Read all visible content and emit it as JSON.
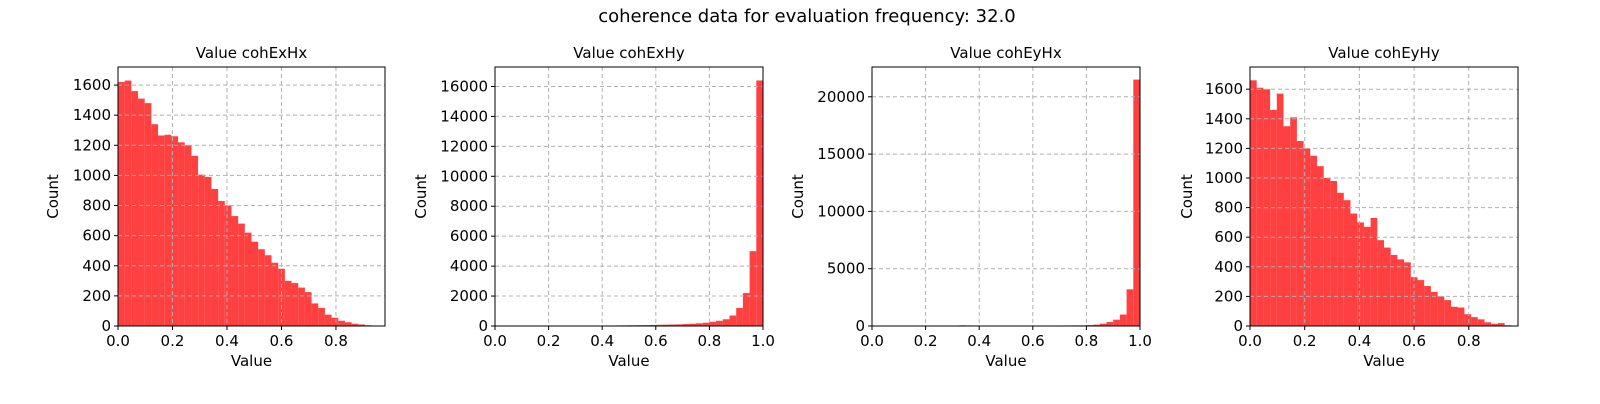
{
  "suptitle": "coherence data for evaluation frequency: 32.0",
  "bar_color": "#ff0000",
  "bar_opacity": 0.75,
  "grid_color": "#b0b0b0",
  "chart_data": [
    {
      "type": "bar",
      "title": "Value cohExHx",
      "xlabel": "Value",
      "ylabel": "Count",
      "xlim": [
        0.0,
        0.98
      ],
      "ylim": [
        0,
        1720
      ],
      "xticks": [
        0.0,
        0.2,
        0.4,
        0.6,
        0.8
      ],
      "xtick_labels": [
        "0.0",
        "0.2",
        "0.4",
        "0.6",
        "0.8"
      ],
      "yticks": [
        0,
        200,
        400,
        600,
        800,
        1000,
        1200,
        1400,
        1600
      ],
      "ytick_labels": [
        "0",
        "200",
        "400",
        "600",
        "800",
        "1000",
        "1200",
        "1400",
        "1600"
      ],
      "bin_width": 0.0245,
      "values": [
        1620,
        1630,
        1560,
        1510,
        1480,
        1340,
        1265,
        1270,
        1260,
        1220,
        1200,
        1130,
        1005,
        990,
        910,
        830,
        800,
        730,
        680,
        620,
        560,
        510,
        470,
        420,
        380,
        300,
        285,
        255,
        225,
        150,
        120,
        75,
        55,
        35,
        25,
        15,
        10,
        5,
        2,
        0
      ]
    },
    {
      "type": "bar",
      "title": "Value cohExHy",
      "xlabel": "Value",
      "ylabel": "Count",
      "xlim": [
        0.0,
        1.0
      ],
      "ylim": [
        0,
        17300
      ],
      "xticks": [
        0.0,
        0.2,
        0.4,
        0.6,
        0.8,
        1.0
      ],
      "xtick_labels": [
        "0.0",
        "0.2",
        "0.4",
        "0.6",
        "0.8",
        "1.0"
      ],
      "yticks": [
        0,
        2000,
        4000,
        6000,
        8000,
        10000,
        12000,
        14000,
        16000
      ],
      "ytick_labels": [
        "0",
        "2000",
        "4000",
        "6000",
        "8000",
        "10000",
        "12000",
        "14000",
        "16000"
      ],
      "bin_width": 0.025,
      "values": [
        0,
        0,
        0,
        0,
        0,
        0,
        0,
        0,
        5,
        8,
        10,
        12,
        15,
        18,
        20,
        25,
        30,
        35,
        40,
        45,
        50,
        55,
        60,
        70,
        80,
        90,
        100,
        110,
        130,
        150,
        180,
        220,
        280,
        350,
        450,
        700,
        1200,
        2200,
        5000,
        16400
      ]
    },
    {
      "type": "bar",
      "title": "Value cohEyHx",
      "xlabel": "Value",
      "ylabel": "Count",
      "xlim": [
        0.0,
        1.0
      ],
      "ylim": [
        0,
        22600
      ],
      "xticks": [
        0.0,
        0.2,
        0.4,
        0.6,
        0.8,
        1.0
      ],
      "xtick_labels": [
        "0.0",
        "0.2",
        "0.4",
        "0.6",
        "0.8",
        "1.0"
      ],
      "yticks": [
        0,
        5000,
        10000,
        15000,
        20000
      ],
      "ytick_labels": [
        "0",
        "5000",
        "10000",
        "15000",
        "20000"
      ],
      "bin_width": 0.025,
      "values": [
        0,
        0,
        0,
        0,
        0,
        0,
        0,
        0,
        0,
        0,
        0,
        0,
        40,
        60,
        50,
        45,
        40,
        40,
        40,
        40,
        40,
        40,
        40,
        40,
        40,
        40,
        40,
        40,
        45,
        50,
        55,
        60,
        80,
        120,
        200,
        350,
        550,
        1000,
        3200,
        21500
      ]
    },
    {
      "type": "bar",
      "title": "Value cohEyHy",
      "xlabel": "Value",
      "ylabel": "Count",
      "xlim": [
        0.0,
        0.98
      ],
      "ylim": [
        0,
        1750
      ],
      "xticks": [
        0.0,
        0.2,
        0.4,
        0.6,
        0.8
      ],
      "xtick_labels": [
        "0.0",
        "0.2",
        "0.4",
        "0.6",
        "0.8"
      ],
      "yticks": [
        0,
        200,
        400,
        600,
        800,
        1000,
        1200,
        1400,
        1600
      ],
      "ytick_labels": [
        "0",
        "200",
        "400",
        "600",
        "800",
        "1000",
        "1200",
        "1400",
        "1600"
      ],
      "bin_width": 0.0245,
      "values": [
        1660,
        1610,
        1600,
        1460,
        1570,
        1350,
        1410,
        1250,
        1200,
        1150,
        1080,
        1000,
        980,
        900,
        850,
        760,
        700,
        670,
        730,
        580,
        530,
        480,
        450,
        430,
        330,
        310,
        270,
        230,
        200,
        175,
        130,
        125,
        80,
        60,
        45,
        25,
        15,
        20,
        5,
        0
      ]
    }
  ]
}
